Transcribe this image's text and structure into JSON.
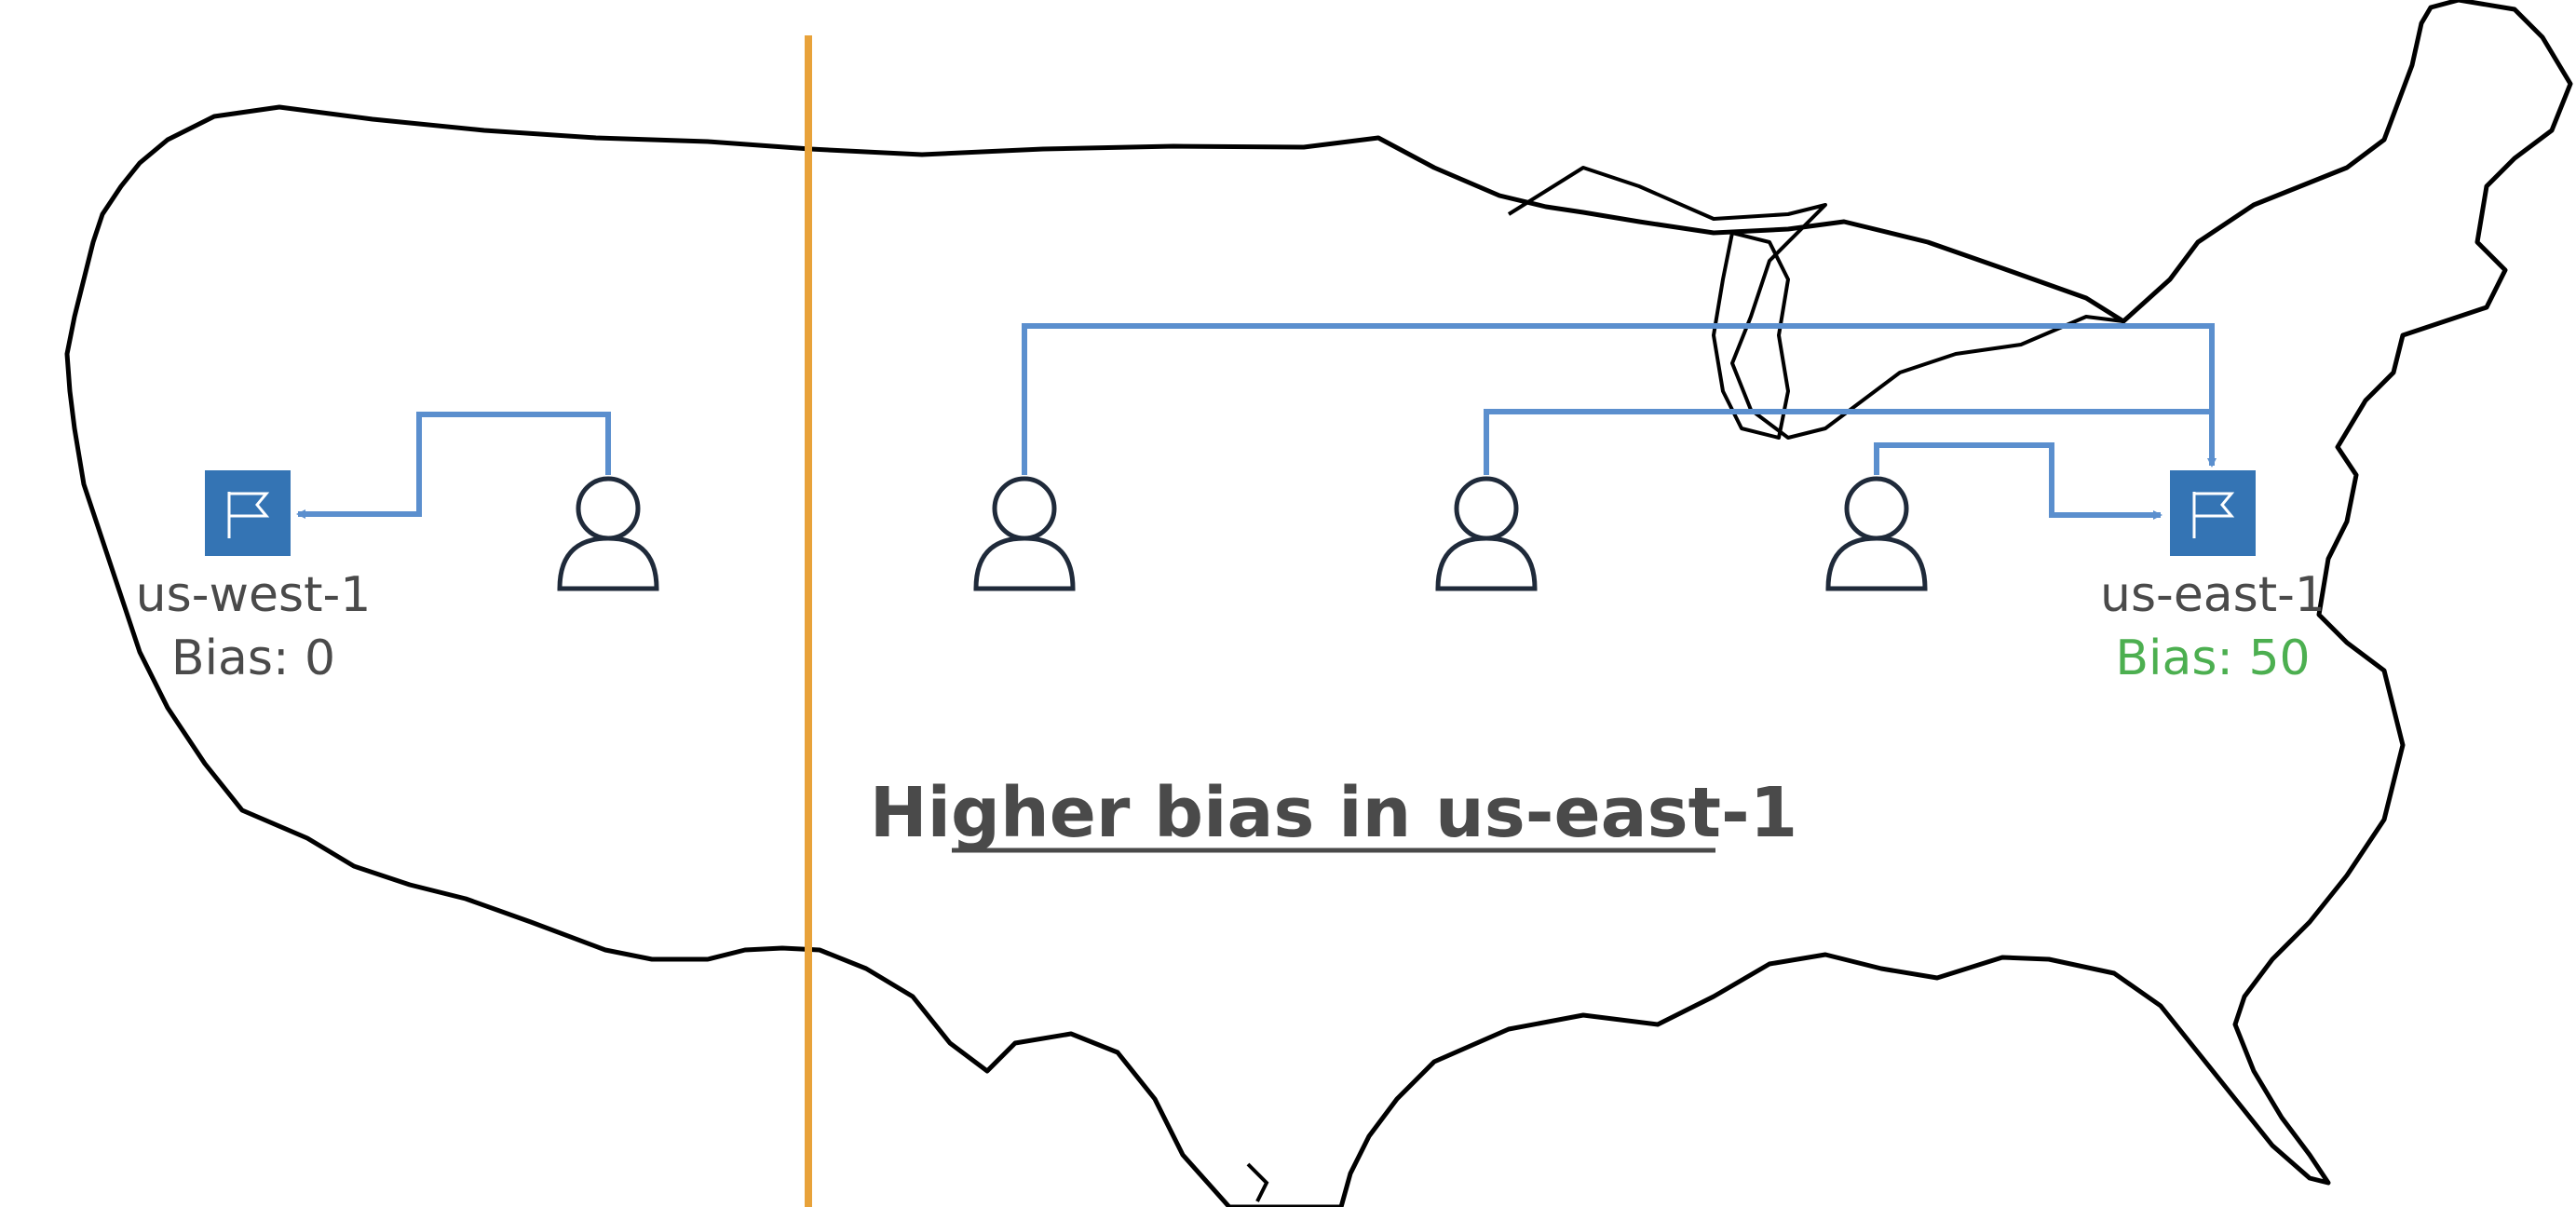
{
  "diagram": {
    "headline": "Higher bias in us-east-1",
    "regions": [
      {
        "name": "us-west-1",
        "bias_label": "Bias: 0",
        "bias": 0
      },
      {
        "name": "us-east-1",
        "bias_label": "Bias: 50",
        "bias": 50
      }
    ],
    "users": [
      {
        "routes_to": "us-west-1"
      },
      {
        "routes_to": "us-east-1"
      },
      {
        "routes_to": "us-east-1"
      },
      {
        "routes_to": "us-east-1"
      }
    ],
    "icons": {
      "region": "flag-icon",
      "user": "user-icon",
      "divider": "bias-boundary-line",
      "background": "us-map-outline"
    },
    "colors": {
      "region_fill": "#3474B4",
      "route_line": "#5B8FCE",
      "boundary_line": "#E8A23A",
      "map_outline": "#000000",
      "text": "#4A4A4A",
      "bias_highlight": "#4CAF50",
      "user_outline": "#1F2A3A"
    }
  }
}
